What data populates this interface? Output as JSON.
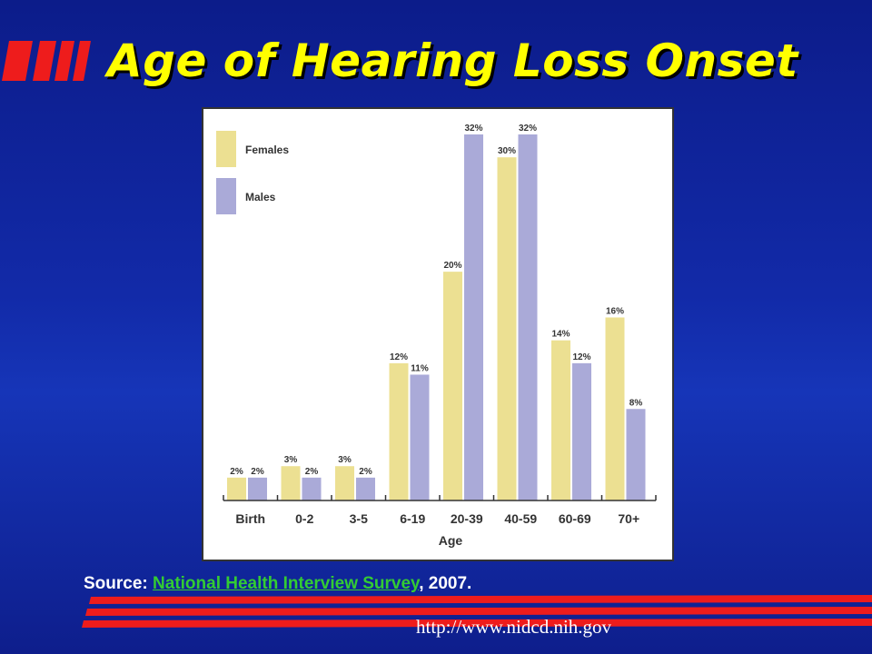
{
  "slide": {
    "title": "Age of Hearing Loss Onset",
    "source_prefix": "Source: ",
    "source_link": "National Health Interview Survey",
    "source_suffix": ", 2007.",
    "url": "http://www.nidcd.nih.gov"
  },
  "colors": {
    "title": "#ffff00",
    "females": "#ece092",
    "males": "#aaaad8",
    "accent_red": "#ee1c1c",
    "link_green": "#33cc33"
  },
  "chart_data": {
    "type": "bar",
    "xlabel": "Age",
    "ylabel": "",
    "categories": [
      "Birth",
      "0-2",
      "3-5",
      "6-19",
      "20-39",
      "40-59",
      "60-69",
      "70+"
    ],
    "series": [
      {
        "name": "Females",
        "values": [
          2,
          3,
          3,
          12,
          20,
          30,
          14,
          16
        ],
        "labels": [
          "2%",
          "3%",
          "3%",
          "12%",
          "20%",
          "30%",
          "14%",
          "16%"
        ]
      },
      {
        "name": "Males",
        "values": [
          2,
          2,
          2,
          11,
          32,
          32,
          12,
          8
        ],
        "labels": [
          "2%",
          "2%",
          "2%",
          "11%",
          "32%",
          "32%",
          "12%",
          "8%"
        ]
      }
    ],
    "ylim": [
      0,
      32
    ],
    "legend_position": "top-left",
    "grid": false
  }
}
